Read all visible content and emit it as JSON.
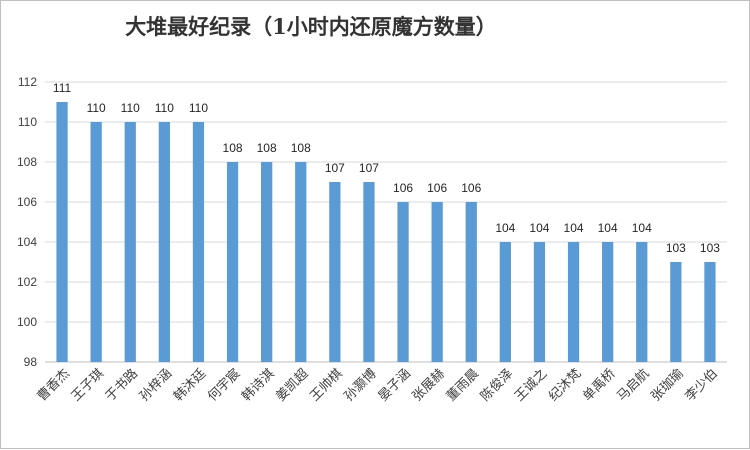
{
  "chart_data": {
    "type": "bar",
    "title": "大堆最好纪录（1小时内还原魔方数量）",
    "xlabel": "",
    "ylabel": "",
    "categories": [
      "曹香杰",
      "王子琪",
      "于书路",
      "孙梓涵",
      "韩沐廷",
      "何宇宸",
      "韩诗淇",
      "姜凯超",
      "王帅棋",
      "孙灏博",
      "晏子涵",
      "张展赫",
      "董雨晨",
      "陈俊泽",
      "王诚之",
      "纪沐梵",
      "单禹桥",
      "马启航",
      "张珈瑜",
      "李少伯"
    ],
    "values": [
      111,
      110,
      110,
      110,
      110,
      108,
      108,
      108,
      107,
      107,
      106,
      106,
      106,
      104,
      104,
      104,
      104,
      104,
      103,
      103
    ],
    "ylim": [
      98,
      112
    ],
    "yticks": [
      98,
      100,
      102,
      104,
      106,
      108,
      110,
      112
    ],
    "grid": true,
    "legend": "none",
    "bar_color": "#5B9BD5"
  }
}
